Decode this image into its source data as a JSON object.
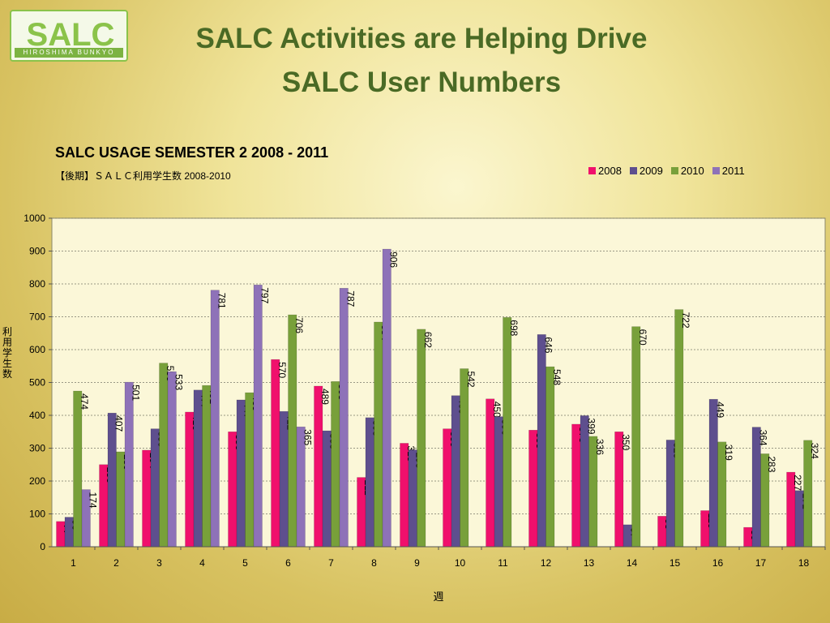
{
  "logo": {
    "main": "SALC",
    "sub": "HIROSHIMA BUNKYO"
  },
  "slide": {
    "title_line1": "SALC Activities are Helping Drive",
    "title_line2": "SALC User Numbers"
  },
  "chart_data": {
    "type": "bar",
    "title": "SALC USAGE SEMESTER 2 2008 - 2011",
    "subtitle": "【後期】ＳＡＬＣ利用学生数 2008-2010",
    "xlabel": "週",
    "ylabel": "利用学生数",
    "ylim": [
      0,
      1000
    ],
    "ytick_step": 100,
    "grid": true,
    "legend_position": "top-right",
    "categories": [
      "1",
      "2",
      "3",
      "4",
      "5",
      "6",
      "7",
      "8",
      "9",
      "10",
      "11",
      "12",
      "13",
      "14",
      "15",
      "16",
      "17",
      "18"
    ],
    "series": [
      {
        "name": "2008",
        "color": "#f0106c",
        "values": [
          77,
          250,
          294,
          410,
          350,
          570,
          489,
          211,
          315,
          359,
          450,
          355,
          373,
          350,
          93,
          110,
          59,
          227
        ]
      },
      {
        "name": "2009",
        "color": "#5e4f8e",
        "values": [
          90,
          407,
          359,
          477,
          447,
          412,
          353,
          393,
          295,
          460,
          396,
          646,
          399,
          67,
          325,
          449,
          364,
          171
        ]
      },
      {
        "name": "2010",
        "color": "#78a03a",
        "values": [
          474,
          289,
          559,
          491,
          469,
          706,
          503,
          684,
          662,
          542,
          698,
          548,
          336,
          670,
          722,
          319,
          283,
          324
        ]
      },
      {
        "name": "2011",
        "color": "#8e72b8",
        "values": [
          174,
          501,
          533,
          781,
          797,
          365,
          787,
          906,
          null,
          null,
          null,
          null,
          null,
          null,
          null,
          null,
          null,
          null
        ]
      }
    ]
  }
}
